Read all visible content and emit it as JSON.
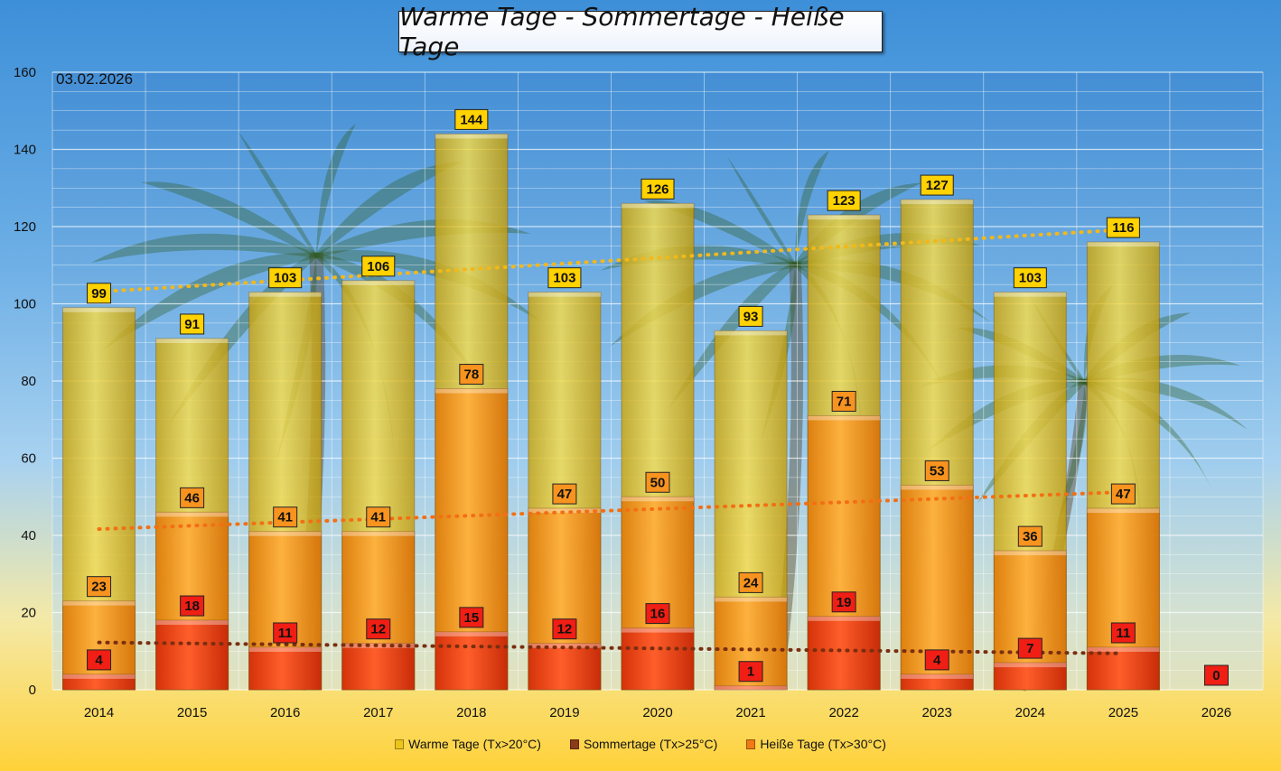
{
  "chart_data": {
    "type": "bar",
    "title": "Warme Tage - Sommertage - Heiße Tage",
    "date": "03.02.2026",
    "categories": [
      "2014",
      "2015",
      "2016",
      "2017",
      "2018",
      "2019",
      "2020",
      "2021",
      "2022",
      "2023",
      "2024",
      "2025",
      "2026"
    ],
    "series": [
      {
        "name": "Warme Tage (Tx>20°C)",
        "values": [
          99,
          91,
          103,
          106,
          144,
          103,
          126,
          93,
          123,
          127,
          103,
          116,
          0
        ],
        "labels": [
          "99",
          "91",
          "103",
          "106",
          "144",
          "103",
          "126",
          "93",
          "123",
          "127",
          "103",
          "116",
          ""
        ],
        "color": "#ecc41c"
      },
      {
        "name": "Sommertage (Tx>25°C)",
        "values": [
          23,
          46,
          41,
          41,
          78,
          47,
          50,
          24,
          71,
          53,
          36,
          47,
          0
        ],
        "labels": [
          "23",
          "46",
          "41",
          "41",
          "78",
          "47",
          "50",
          "24",
          "71",
          "53",
          "36",
          "47",
          ""
        ],
        "color": "#f7941d"
      },
      {
        "name": "Heiße Tage (Tx>30°C)",
        "values": [
          4,
          18,
          11,
          12,
          15,
          12,
          16,
          1,
          19,
          4,
          7,
          11,
          0
        ],
        "labels": [
          "4",
          "18",
          "11",
          "12",
          "15",
          "12",
          "16",
          "1",
          "19",
          "4",
          "7",
          "11",
          "0"
        ],
        "color": "#ee3a12"
      }
    ],
    "ylim": [
      0,
      160
    ],
    "yticks": [
      "0",
      "20",
      "40",
      "60",
      "80",
      "100",
      "120",
      "140",
      "160"
    ],
    "grid": true,
    "trendlines": true,
    "legend_position": "bottom"
  },
  "legend": [
    {
      "label": "Warme Tage (Tx>20°C)",
      "color": "#ecc41c"
    },
    {
      "label": "Sommertage (Tx>25°C)",
      "color": "#8b3a1a"
    },
    {
      "label": "Heiße Tage (Tx>30°C)",
      "color": "#f07a14"
    }
  ]
}
